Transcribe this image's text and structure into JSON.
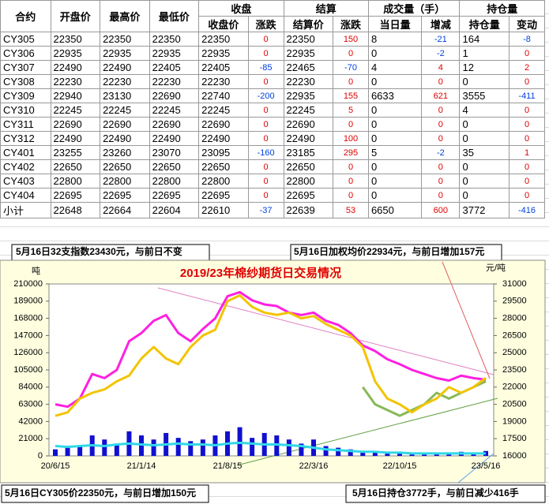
{
  "table": {
    "header_top": [
      "合约",
      "开盘价",
      "最高价",
      "最低价",
      "收盘",
      "结算",
      "成交量（手）",
      "持仓量"
    ],
    "header_sub": [
      "收盘价",
      "涨跌",
      "结算价",
      "涨跌",
      "当日量",
      "增减",
      "持仓量",
      "变动"
    ],
    "rows": [
      [
        "CY305",
        "22350",
        "22350",
        "22350",
        "22350",
        "0",
        "22350",
        "150",
        "8",
        "-21",
        "164",
        "-8"
      ],
      [
        "CY306",
        "22935",
        "22935",
        "22935",
        "22935",
        "0",
        "22935",
        "0",
        "0",
        "-2",
        "1",
        "0"
      ],
      [
        "CY307",
        "22490",
        "22490",
        "22405",
        "22405",
        "-85",
        "22465",
        "-70",
        "4",
        "4",
        "12",
        "2"
      ],
      [
        "CY308",
        "22230",
        "22230",
        "22230",
        "22230",
        "0",
        "22230",
        "0",
        "0",
        "0",
        "0",
        "0"
      ],
      [
        "CY309",
        "22940",
        "23130",
        "22690",
        "22740",
        "-200",
        "22935",
        "155",
        "6633",
        "621",
        "3555",
        "-411"
      ],
      [
        "CY310",
        "22245",
        "22245",
        "22245",
        "22245",
        "0",
        "22245",
        "5",
        "0",
        "0",
        "4",
        "0"
      ],
      [
        "CY311",
        "22690",
        "22690",
        "22690",
        "22690",
        "0",
        "22690",
        "0",
        "0",
        "0",
        "0",
        "0"
      ],
      [
        "CY312",
        "22490",
        "22490",
        "22490",
        "22490",
        "0",
        "22490",
        "100",
        "0",
        "0",
        "0",
        "0"
      ],
      [
        "CY401",
        "23255",
        "23260",
        "23070",
        "23095",
        "-160",
        "23185",
        "295",
        "5",
        "-2",
        "35",
        "1"
      ],
      [
        "CY402",
        "22650",
        "22650",
        "22650",
        "22650",
        "0",
        "22650",
        "0",
        "0",
        "0",
        "0",
        "0"
      ],
      [
        "CY403",
        "22800",
        "22800",
        "22800",
        "22800",
        "0",
        "22800",
        "0",
        "0",
        "0",
        "0",
        "0"
      ],
      [
        "CY404",
        "22695",
        "22695",
        "22695",
        "22695",
        "0",
        "22695",
        "0",
        "0",
        "0",
        "0",
        "0"
      ],
      [
        "小计",
        "22648",
        "22664",
        "22604",
        "22610",
        "-37",
        "22639",
        "53",
        "6650",
        "600",
        "3772",
        "-416"
      ]
    ]
  },
  "notes": [
    "5月16日32支指数23430元，与前日不变",
    "5月16日加权均价22934元，与前日增加157元",
    "5月16日CY305价22350元，与前日增加150元",
    "5月16日持仓3772手，与前日减少416手"
  ],
  "chart_data": {
    "type": "line",
    "title": "2019/23年棉纱期货日交易情况",
    "ylabel": "吨",
    "y2label": "元/吨",
    "categories": [
      "20/6/15",
      null,
      null,
      null,
      null,
      null,
      null,
      "21/1/14",
      null,
      null,
      null,
      null,
      null,
      null,
      "21/8/15",
      null,
      null,
      null,
      null,
      null,
      null,
      "22/3/16",
      null,
      null,
      null,
      null,
      null,
      null,
      "22/10/15",
      null,
      null,
      null,
      null,
      null,
      null,
      "23/5/16"
    ],
    "ylim": [
      0,
      210000
    ],
    "yticks": [
      0,
      21000,
      42000,
      63000,
      84000,
      105000,
      126000,
      147000,
      168000,
      189000,
      210000
    ],
    "y2lim": [
      16000,
      31000
    ],
    "y2ticks": [
      16000,
      17500,
      19000,
      20500,
      22000,
      23500,
      25000,
      26500,
      28000,
      29500,
      31000
    ],
    "series": [
      {
        "type": "bar",
        "color": "#1010d0",
        "values": [
          8000,
          10000,
          12000,
          25000,
          20000,
          15000,
          30000,
          25000,
          20000,
          28000,
          22000,
          18000,
          20000,
          25000,
          30000,
          35000,
          22000,
          28000,
          25000,
          20000,
          15000,
          20000,
          12000,
          10000,
          8000,
          6000,
          5000,
          4000,
          3000,
          4000,
          3000,
          4000,
          3000,
          5000,
          3000,
          6000
        ]
      },
      {
        "type": "line",
        "color": "#30d8e8",
        "values": [
          12000,
          11000,
          12000,
          13000,
          12000,
          14000,
          15000,
          14000,
          13000,
          14000,
          15000,
          14000,
          14000,
          13000,
          15000,
          16000,
          15000,
          14000,
          14000,
          13000,
          12000,
          10000,
          8000,
          7000,
          6000,
          5000,
          5000,
          4000,
          4000,
          3000,
          3000,
          3000,
          3000,
          3000,
          3000,
          3000
        ]
      },
      {
        "type": "line",
        "color": "#ff20e0",
        "values": [
          63000,
          60000,
          70000,
          100000,
          95000,
          105000,
          140000,
          150000,
          165000,
          172000,
          150000,
          140000,
          155000,
          168000,
          195000,
          200000,
          190000,
          185000,
          183000,
          175000,
          172000,
          175000,
          165000,
          160000,
          150000,
          135000,
          128000,
          118000,
          112000,
          105000,
          100000,
          95000,
          92000,
          98000,
          95000,
          93000
        ]
      },
      {
        "type": "line",
        "axis": "y2",
        "color": "#88b858",
        "values": [
          null,
          null,
          null,
          null,
          null,
          null,
          null,
          null,
          null,
          null,
          null,
          null,
          null,
          null,
          null,
          null,
          null,
          null,
          null,
          null,
          null,
          null,
          null,
          null,
          null,
          22000,
          20500,
          20000,
          19500,
          20000,
          20500,
          21500,
          21000,
          21500,
          22000,
          22500
        ]
      },
      {
        "type": "line",
        "axis": "y2",
        "color": "#f2c400",
        "values": [
          19500,
          19800,
          21000,
          21500,
          21800,
          22500,
          23000,
          24500,
          25500,
          24500,
          24000,
          25500,
          26500,
          27000,
          29500,
          30000,
          29000,
          28500,
          28300,
          28500,
          28000,
          28200,
          27500,
          27000,
          26500,
          25500,
          22500,
          21000,
          20500,
          19800,
          20500,
          21000,
          22000,
          21500,
          22000,
          22800
        ]
      }
    ]
  }
}
